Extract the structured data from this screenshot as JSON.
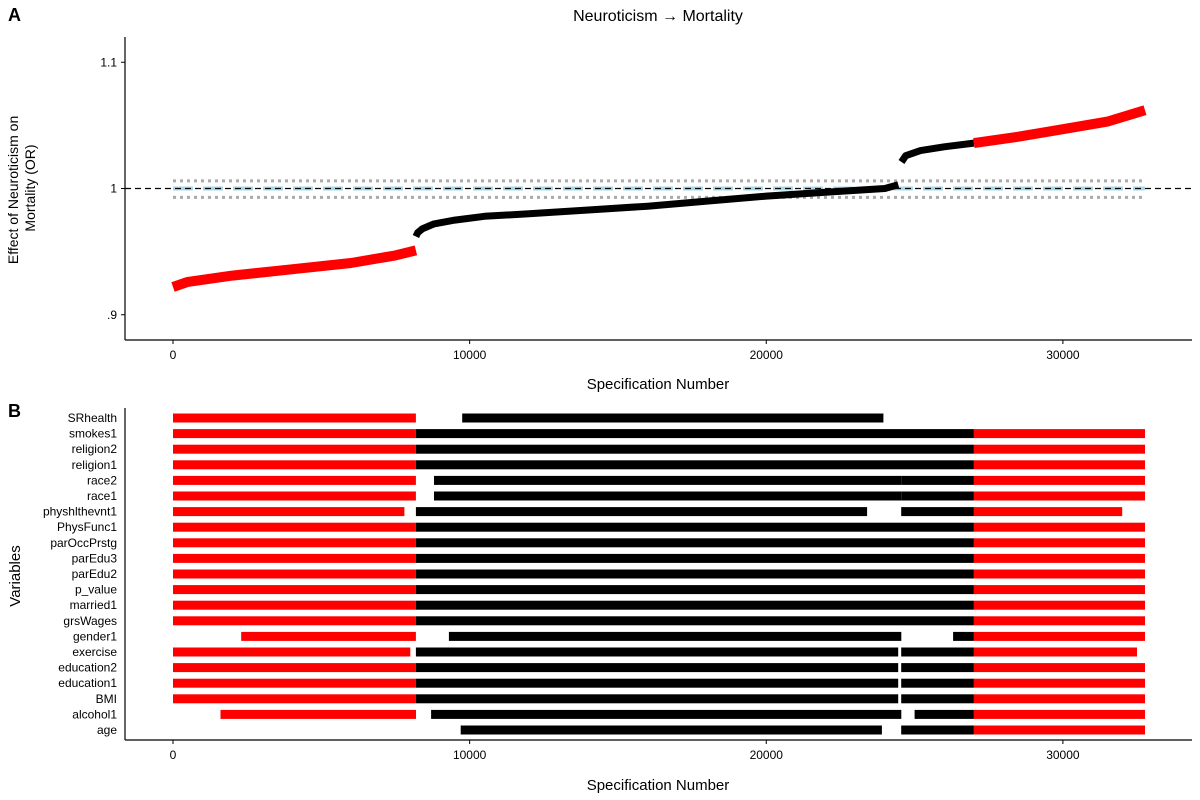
{
  "panels": {
    "a": {
      "label": "A"
    },
    "b": {
      "label": "B"
    }
  },
  "colors": {
    "significant": "#ff0000",
    "nonsignificant": "#000000",
    "null_band": "#a8d8ea",
    "band_dots": "#aaaaaa"
  },
  "chart_data": [
    {
      "type": "line",
      "title": "Neuroticism → Mortality",
      "xlabel": "Specification Number",
      "ylabel": "Effect of Neuroticism on Mortality (OR)",
      "ylabel_lines": [
        "Effect of Neuroticism on",
        "Mortality (OR)"
      ],
      "xlim": [
        0,
        32768
      ],
      "ylim": [
        0.88,
        1.12
      ],
      "xticks": [
        {
          "value": 0,
          "label": "0"
        },
        {
          "value": 10000,
          "label": "10000"
        },
        {
          "value": 20000,
          "label": "20000"
        },
        {
          "value": 30000,
          "label": "30000"
        }
      ],
      "yticks": [
        {
          "value": 0.9,
          "label": ".9"
        },
        {
          "value": 1.0,
          "label": "1"
        },
        {
          "value": 1.1,
          "label": "1.1"
        }
      ],
      "reference_line": 1.0,
      "null_band": {
        "center": 1.0,
        "lower": 0.993,
        "upper": 1.006
      },
      "segments": [
        {
          "significant": true,
          "x": [
            0,
            500,
            2000,
            4000,
            6000,
            7500,
            8190
          ],
          "y": [
            0.922,
            0.926,
            0.931,
            0.936,
            0.941,
            0.947,
            0.951
          ]
        },
        {
          "significant": false,
          "x": [
            8190,
            8250,
            8400,
            8800,
            9500,
            10500,
            12000,
            14000,
            16000,
            18000,
            20000,
            22000,
            24000,
            24450
          ],
          "y": [
            0.962,
            0.965,
            0.968,
            0.972,
            0.975,
            0.978,
            0.98,
            0.983,
            0.986,
            0.99,
            0.994,
            0.997,
            1.0,
            1.003
          ]
        },
        {
          "significant": false,
          "x": [
            24560,
            24700,
            25200,
            26000,
            27000
          ],
          "y": [
            1.021,
            1.026,
            1.03,
            1.033,
            1.036
          ]
        },
        {
          "significant": true,
          "x": [
            27000,
            28500,
            30000,
            31500,
            32768
          ],
          "y": [
            1.036,
            1.041,
            1.047,
            1.053,
            1.062
          ]
        }
      ]
    },
    {
      "type": "heatmap",
      "xlabel": "Specification Number",
      "ylabel": "Variables",
      "xlim": [
        0,
        32768
      ],
      "xticks": [
        {
          "value": 0,
          "label": "0"
        },
        {
          "value": 10000,
          "label": "10000"
        },
        {
          "value": 20000,
          "label": "20000"
        },
        {
          "value": 30000,
          "label": "30000"
        }
      ],
      "variables": [
        {
          "name": "SRhealth",
          "bars": [
            [
              0,
              8190,
              "sig"
            ],
            [
              9750,
              23950,
              "ns"
            ]
          ]
        },
        {
          "name": "smokes1",
          "bars": [
            [
              0,
              8190,
              "sig"
            ],
            [
              8190,
              27000,
              "ns"
            ],
            [
              27000,
              32768,
              "sig"
            ]
          ]
        },
        {
          "name": "religion2",
          "bars": [
            [
              0,
              8190,
              "sig"
            ],
            [
              8190,
              27000,
              "ns"
            ],
            [
              27000,
              32768,
              "sig"
            ]
          ]
        },
        {
          "name": "religion1",
          "bars": [
            [
              0,
              8190,
              "sig"
            ],
            [
              8190,
              27000,
              "ns"
            ],
            [
              27000,
              32768,
              "sig"
            ]
          ]
        },
        {
          "name": "race2",
          "bars": [
            [
              0,
              8190,
              "sig"
            ],
            [
              8800,
              24550,
              "ns"
            ],
            [
              24550,
              27000,
              "ns"
            ],
            [
              27000,
              32768,
              "sig"
            ]
          ]
        },
        {
          "name": "race1",
          "bars": [
            [
              0,
              8190,
              "sig"
            ],
            [
              8800,
              24550,
              "ns"
            ],
            [
              24550,
              27000,
              "ns"
            ],
            [
              27000,
              32768,
              "sig"
            ]
          ]
        },
        {
          "name": "physhlthevnt1",
          "bars": [
            [
              0,
              7800,
              "sig"
            ],
            [
              8190,
              23400,
              "ns"
            ],
            [
              24550,
              27000,
              "ns"
            ],
            [
              27000,
              32000,
              "sig"
            ]
          ]
        },
        {
          "name": "PhysFunc1",
          "bars": [
            [
              0,
              8190,
              "sig"
            ],
            [
              8190,
              27000,
              "ns"
            ],
            [
              27000,
              32768,
              "sig"
            ]
          ]
        },
        {
          "name": "parOccPrstg",
          "bars": [
            [
              0,
              8190,
              "sig"
            ],
            [
              8190,
              27000,
              "ns"
            ],
            [
              27000,
              32768,
              "sig"
            ]
          ]
        },
        {
          "name": "parEdu3",
          "bars": [
            [
              0,
              8190,
              "sig"
            ],
            [
              8190,
              27000,
              "ns"
            ],
            [
              27000,
              32768,
              "sig"
            ]
          ]
        },
        {
          "name": "parEdu2",
          "bars": [
            [
              0,
              8190,
              "sig"
            ],
            [
              8190,
              27000,
              "ns"
            ],
            [
              27000,
              32768,
              "sig"
            ]
          ]
        },
        {
          "name": "p_value",
          "bars": [
            [
              0,
              8190,
              "sig"
            ],
            [
              8190,
              27000,
              "ns"
            ],
            [
              27000,
              32768,
              "sig"
            ]
          ]
        },
        {
          "name": "married1",
          "bars": [
            [
              0,
              8190,
              "sig"
            ],
            [
              8190,
              27000,
              "ns"
            ],
            [
              27000,
              32768,
              "sig"
            ]
          ]
        },
        {
          "name": "grsWages",
          "bars": [
            [
              0,
              8190,
              "sig"
            ],
            [
              8190,
              27000,
              "ns"
            ],
            [
              27000,
              32768,
              "sig"
            ]
          ]
        },
        {
          "name": "gender1",
          "bars": [
            [
              2300,
              8190,
              "sig"
            ],
            [
              9300,
              24550,
              "ns"
            ],
            [
              26300,
              27000,
              "ns"
            ],
            [
              27000,
              32768,
              "sig"
            ]
          ]
        },
        {
          "name": "exercise",
          "bars": [
            [
              0,
              8000,
              "sig"
            ],
            [
              8190,
              24450,
              "ns"
            ],
            [
              24550,
              27000,
              "ns"
            ],
            [
              27000,
              32500,
              "sig"
            ]
          ]
        },
        {
          "name": "education2",
          "bars": [
            [
              0,
              8190,
              "sig"
            ],
            [
              8190,
              24450,
              "ns"
            ],
            [
              24550,
              27000,
              "ns"
            ],
            [
              27000,
              32768,
              "sig"
            ]
          ]
        },
        {
          "name": "education1",
          "bars": [
            [
              0,
              8190,
              "sig"
            ],
            [
              8190,
              24450,
              "ns"
            ],
            [
              24550,
              27000,
              "ns"
            ],
            [
              27000,
              32768,
              "sig"
            ]
          ]
        },
        {
          "name": "BMI",
          "bars": [
            [
              0,
              8190,
              "sig"
            ],
            [
              8190,
              24450,
              "ns"
            ],
            [
              24550,
              27000,
              "ns"
            ],
            [
              27000,
              32768,
              "sig"
            ]
          ]
        },
        {
          "name": "alcohol1",
          "bars": [
            [
              1600,
              8190,
              "sig"
            ],
            [
              8700,
              24550,
              "ns"
            ],
            [
              25000,
              27000,
              "ns"
            ],
            [
              27000,
              32768,
              "sig"
            ]
          ]
        },
        {
          "name": "age",
          "bars": [
            [
              9700,
              23900,
              "ns"
            ],
            [
              24550,
              27000,
              "ns"
            ],
            [
              27000,
              32768,
              "sig"
            ]
          ]
        }
      ]
    }
  ]
}
